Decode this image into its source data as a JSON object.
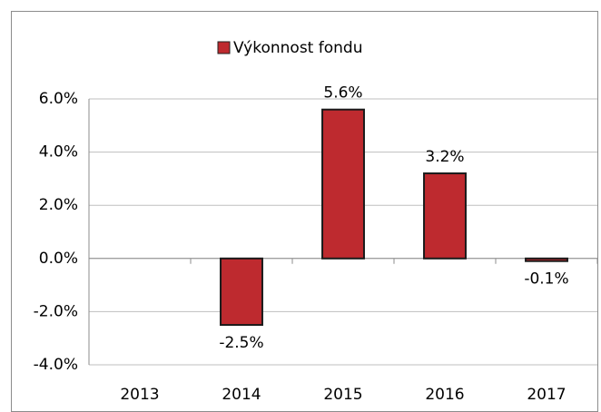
{
  "chart_data": {
    "type": "bar",
    "categories": [
      "2013",
      "2014",
      "2015",
      "2016",
      "2017"
    ],
    "series": [
      {
        "name": "Výkonnost fondu",
        "color": "#be2a2f",
        "values": [
          null,
          -2.5,
          5.6,
          3.2,
          -0.1
        ],
        "value_labels": [
          null,
          "-2.5%",
          "5.6%",
          "3.2%",
          "-0.1%"
        ]
      }
    ],
    "ylim": [
      -4,
      6
    ],
    "yticks": [
      {
        "value": -4,
        "label": "-4.0%"
      },
      {
        "value": -2,
        "label": "-2.0%"
      },
      {
        "value": 0,
        "label": "0.0%"
      },
      {
        "value": 2,
        "label": "2.0%"
      },
      {
        "value": 4,
        "label": "4.0%"
      },
      {
        "value": 6,
        "label": "6.0%"
      }
    ],
    "grid": true,
    "legend": "top"
  }
}
